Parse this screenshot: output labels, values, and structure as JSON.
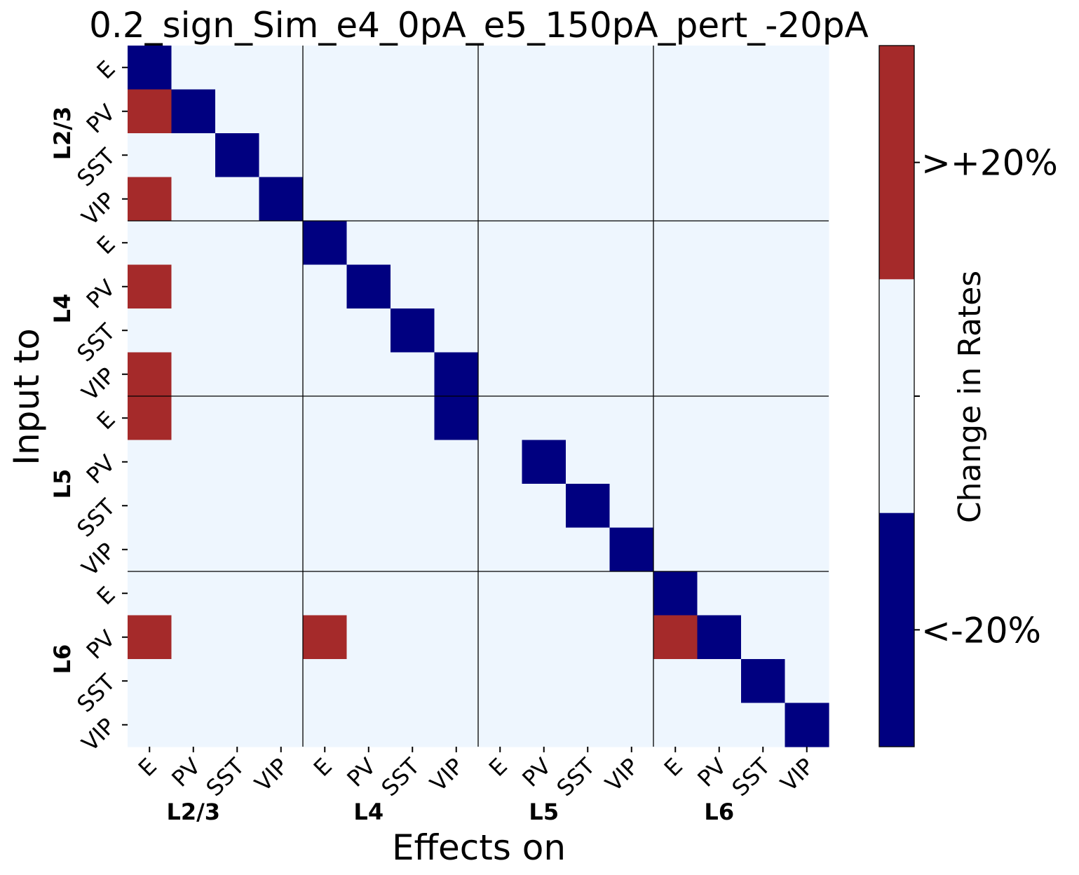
{
  "chart_data": {
    "type": "heatmap",
    "title": "0.2_sign_Sim_e4_0pA_e5_150pA_pert_-20pA",
    "xlabel": "Effects on",
    "ylabel": "Input to",
    "cell_labels": [
      "E",
      "PV",
      "SST",
      "VIP",
      "E",
      "PV",
      "SST",
      "VIP",
      "E",
      "PV",
      "SST",
      "VIP",
      "E",
      "PV",
      "SST",
      "VIP"
    ],
    "group_labels": [
      "L2/3",
      "L4",
      "L5",
      "L6"
    ],
    "colorbar": {
      "label": "Change in Rates",
      "tick_labels": [
        "<-20%",
        ">+20%"
      ],
      "levels": [
        -1,
        0,
        1
      ],
      "colors": {
        "-1": "#000080",
        "0": "#eef6fe",
        "1": "#a52a2a"
      }
    },
    "values": [
      [
        -1,
        0,
        0,
        0,
        0,
        0,
        0,
        0,
        0,
        0,
        0,
        0,
        0,
        0,
        0,
        0
      ],
      [
        1,
        -1,
        0,
        0,
        0,
        0,
        0,
        0,
        0,
        0,
        0,
        0,
        0,
        0,
        0,
        0
      ],
      [
        0,
        0,
        -1,
        0,
        0,
        0,
        0,
        0,
        0,
        0,
        0,
        0,
        0,
        0,
        0,
        0
      ],
      [
        1,
        0,
        0,
        -1,
        0,
        0,
        0,
        0,
        0,
        0,
        0,
        0,
        0,
        0,
        0,
        0
      ],
      [
        0,
        0,
        0,
        0,
        -1,
        0,
        0,
        0,
        0,
        0,
        0,
        0,
        0,
        0,
        0,
        0
      ],
      [
        1,
        0,
        0,
        0,
        0,
        -1,
        0,
        0,
        0,
        0,
        0,
        0,
        0,
        0,
        0,
        0
      ],
      [
        0,
        0,
        0,
        0,
        0,
        0,
        -1,
        0,
        0,
        0,
        0,
        0,
        0,
        0,
        0,
        0
      ],
      [
        1,
        0,
        0,
        0,
        0,
        0,
        0,
        -1,
        0,
        0,
        0,
        0,
        0,
        0,
        0,
        0
      ],
      [
        1,
        0,
        0,
        0,
        0,
        0,
        0,
        -1,
        0,
        0,
        0,
        0,
        0,
        0,
        0,
        0
      ],
      [
        0,
        0,
        0,
        0,
        0,
        0,
        0,
        0,
        0,
        -1,
        0,
        0,
        0,
        0,
        0,
        0
      ],
      [
        0,
        0,
        0,
        0,
        0,
        0,
        0,
        0,
        0,
        0,
        -1,
        0,
        0,
        0,
        0,
        0
      ],
      [
        0,
        0,
        0,
        0,
        0,
        0,
        0,
        0,
        0,
        0,
        0,
        -1,
        0,
        0,
        0,
        0
      ],
      [
        0,
        0,
        0,
        0,
        0,
        0,
        0,
        0,
        0,
        0,
        0,
        0,
        -1,
        0,
        0,
        0
      ],
      [
        1,
        0,
        0,
        0,
        1,
        0,
        0,
        0,
        0,
        0,
        0,
        0,
        1,
        -1,
        0,
        0
      ],
      [
        0,
        0,
        0,
        0,
        0,
        0,
        0,
        0,
        0,
        0,
        0,
        0,
        0,
        0,
        -1,
        0
      ],
      [
        0,
        0,
        0,
        0,
        0,
        0,
        0,
        0,
        0,
        0,
        0,
        0,
        0,
        0,
        0,
        -1
      ]
    ]
  }
}
